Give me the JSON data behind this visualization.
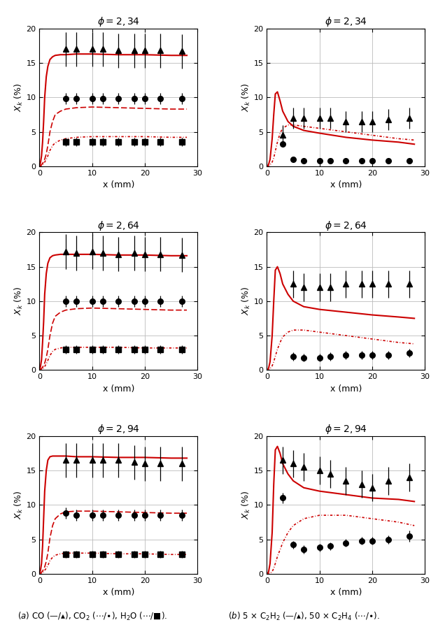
{
  "phi_labels": [
    "2,34",
    "2,64",
    "2,94"
  ],
  "xlim": [
    0,
    30
  ],
  "ylim": [
    0,
    20
  ],
  "xticks": [
    0,
    10,
    20,
    30
  ],
  "yticks": [
    0,
    5,
    10,
    15,
    20
  ],
  "xlabel": "x (mm)",
  "red": "#cc0000",
  "grid_color": "#bbbbbb",
  "left_panels": {
    "CO_line": {
      "phi234": {
        "x": [
          0,
          0.2,
          0.4,
          0.6,
          0.8,
          1.0,
          1.3,
          1.6,
          2.0,
          2.5,
          3.0,
          4.0,
          5.0,
          7.0,
          10,
          15,
          20,
          25,
          28
        ],
        "y": [
          0,
          0.5,
          1.5,
          3.5,
          6.5,
          10,
          13,
          14.5,
          15.5,
          15.9,
          16.1,
          16.2,
          16.2,
          16.3,
          16.3,
          16.2,
          16.2,
          16.1,
          16.1
        ]
      },
      "phi264": {
        "x": [
          0,
          0.2,
          0.4,
          0.6,
          0.8,
          1.0,
          1.3,
          1.6,
          2.0,
          2.5,
          3.0,
          4.0,
          5.0,
          7.0,
          10,
          15,
          20,
          25,
          28
        ],
        "y": [
          0,
          0.5,
          1.5,
          4,
          7,
          11,
          14,
          15.5,
          16.3,
          16.6,
          16.7,
          16.8,
          16.8,
          16.8,
          16.8,
          16.7,
          16.7,
          16.6,
          16.6
        ]
      },
      "phi294": {
        "x": [
          0,
          0.2,
          0.4,
          0.6,
          0.8,
          1.0,
          1.3,
          1.6,
          2.0,
          2.5,
          3.0,
          4.0,
          5.0,
          7.0,
          10,
          15,
          20,
          25,
          28
        ],
        "y": [
          0,
          0.5,
          1.5,
          4,
          8,
          12,
          15,
          16.5,
          17.0,
          17.1,
          17.1,
          17.1,
          17.1,
          17.0,
          17.0,
          16.9,
          16.9,
          16.8,
          16.8
        ]
      }
    },
    "CO2_line": {
      "phi234": {
        "x": [
          0,
          0.2,
          0.4,
          0.6,
          0.8,
          1.0,
          1.3,
          1.6,
          2.0,
          2.5,
          3.0,
          4.0,
          5.0,
          7.0,
          10,
          15,
          20,
          25,
          28
        ],
        "y": [
          0,
          0.1,
          0.2,
          0.4,
          0.7,
          1.0,
          1.8,
          3.0,
          5.0,
          6.5,
          7.5,
          8.0,
          8.3,
          8.5,
          8.6,
          8.5,
          8.4,
          8.3,
          8.3
        ]
      },
      "phi264": {
        "x": [
          0,
          0.2,
          0.4,
          0.6,
          0.8,
          1.0,
          1.3,
          1.6,
          2.0,
          2.5,
          3.0,
          4.0,
          5.0,
          7.0,
          10,
          15,
          20,
          25,
          28
        ],
        "y": [
          0,
          0.1,
          0.2,
          0.4,
          0.7,
          1.0,
          1.8,
          3.0,
          5.0,
          6.8,
          7.8,
          8.4,
          8.7,
          8.9,
          9.0,
          8.9,
          8.8,
          8.7,
          8.7
        ]
      },
      "phi294": {
        "x": [
          0,
          0.2,
          0.4,
          0.6,
          0.8,
          1.0,
          1.3,
          1.6,
          2.0,
          2.5,
          3.0,
          4.0,
          5.0,
          7.0,
          10,
          15,
          20,
          25,
          28
        ],
        "y": [
          0,
          0.1,
          0.2,
          0.4,
          0.7,
          1.0,
          1.8,
          3.0,
          5.2,
          7.0,
          8.0,
          8.7,
          9.0,
          9.1,
          9.1,
          9.0,
          8.9,
          8.8,
          8.8
        ]
      }
    },
    "H2O_line": {
      "phi234": {
        "x": [
          0,
          0.2,
          0.4,
          0.6,
          0.8,
          1.0,
          1.3,
          1.6,
          2.0,
          2.5,
          3.0,
          4.0,
          5.0,
          7.0,
          10,
          15,
          20,
          25,
          28
        ],
        "y": [
          0,
          0.05,
          0.1,
          0.2,
          0.4,
          0.6,
          1.0,
          1.5,
          2.3,
          3.0,
          3.4,
          3.8,
          4.0,
          4.2,
          4.3,
          4.3,
          4.3,
          4.2,
          4.2
        ]
      },
      "phi264": {
        "x": [
          0,
          0.2,
          0.4,
          0.6,
          0.8,
          1.0,
          1.3,
          1.6,
          2.0,
          2.5,
          3.0,
          4.0,
          5.0,
          7.0,
          10,
          15,
          20,
          25,
          28
        ],
        "y": [
          0,
          0.05,
          0.1,
          0.2,
          0.3,
          0.5,
          0.9,
          1.4,
          2.1,
          2.7,
          3.0,
          3.2,
          3.3,
          3.3,
          3.3,
          3.3,
          3.2,
          3.2,
          3.2
        ]
      },
      "phi294": {
        "x": [
          0,
          0.2,
          0.4,
          0.6,
          0.8,
          1.0,
          1.3,
          1.6,
          2.0,
          2.5,
          3.0,
          4.0,
          5.0,
          7.0,
          10,
          15,
          20,
          25,
          28
        ],
        "y": [
          0,
          0.05,
          0.1,
          0.2,
          0.3,
          0.5,
          0.8,
          1.2,
          1.9,
          2.4,
          2.7,
          2.9,
          3.0,
          3.0,
          3.0,
          2.9,
          2.9,
          2.8,
          2.8
        ]
      }
    },
    "CO_exp": {
      "phi234": {
        "x": [
          5,
          7,
          10,
          12,
          15,
          18,
          20,
          23,
          27
        ],
        "y": [
          17.0,
          17.0,
          17.0,
          17.0,
          16.8,
          16.8,
          16.8,
          16.8,
          16.7
        ],
        "yerr": [
          2.5,
          2.5,
          2.5,
          2.5,
          2.5,
          2.5,
          2.5,
          2.5,
          2.5
        ]
      },
      "phi264": {
        "x": [
          5,
          7,
          10,
          12,
          15,
          18,
          20,
          23,
          27
        ],
        "y": [
          17.2,
          17.0,
          17.2,
          17.0,
          16.8,
          17.0,
          16.8,
          16.8,
          16.7
        ],
        "yerr": [
          2.5,
          2.5,
          2.5,
          2.5,
          2.5,
          2.5,
          2.5,
          2.5,
          2.5
        ]
      },
      "phi294": {
        "x": [
          5,
          7,
          10,
          12,
          15,
          18,
          20,
          23,
          27
        ],
        "y": [
          16.5,
          16.5,
          16.5,
          16.5,
          16.5,
          16.2,
          16.0,
          16.0,
          16.0
        ],
        "yerr": [
          2.5,
          2.5,
          2.5,
          2.5,
          2.5,
          2.5,
          2.5,
          2.5,
          2.5
        ]
      }
    },
    "CO2_exp": {
      "phi234": {
        "x": [
          5,
          7,
          10,
          12,
          15,
          18,
          20,
          23,
          27
        ],
        "y": [
          9.8,
          9.8,
          9.8,
          9.8,
          9.8,
          9.8,
          9.8,
          9.8,
          9.8
        ],
        "yerr": [
          0.8,
          0.8,
          0.8,
          0.8,
          0.8,
          0.8,
          0.8,
          0.8,
          0.8
        ]
      },
      "phi264": {
        "x": [
          5,
          7,
          10,
          12,
          15,
          18,
          20,
          23,
          27
        ],
        "y": [
          10.0,
          10.0,
          10.0,
          10.0,
          10.0,
          10.0,
          10.0,
          10.0,
          10.0
        ],
        "yerr": [
          0.8,
          0.8,
          0.8,
          0.8,
          0.8,
          0.8,
          0.8,
          0.8,
          0.8
        ]
      },
      "phi294": {
        "x": [
          5,
          7,
          10,
          12,
          15,
          18,
          20,
          23,
          27
        ],
        "y": [
          8.8,
          8.5,
          8.5,
          8.5,
          8.5,
          8.5,
          8.5,
          8.5,
          8.5
        ],
        "yerr": [
          0.8,
          0.8,
          0.8,
          0.8,
          0.8,
          0.8,
          0.8,
          0.8,
          0.8
        ]
      }
    },
    "H2O_exp": {
      "phi234": {
        "x": [
          5,
          7,
          10,
          12,
          15,
          18,
          20,
          23,
          27
        ],
        "y": [
          3.5,
          3.5,
          3.5,
          3.5,
          3.5,
          3.5,
          3.5,
          3.5,
          3.5
        ],
        "yerr": [
          0.6,
          0.6,
          0.6,
          0.6,
          0.6,
          0.6,
          0.6,
          0.6,
          0.6
        ]
      },
      "phi264": {
        "x": [
          5,
          7,
          10,
          12,
          15,
          18,
          20,
          23,
          27
        ],
        "y": [
          3.0,
          3.0,
          3.0,
          3.0,
          3.0,
          3.0,
          3.0,
          3.0,
          3.0
        ],
        "yerr": [
          0.6,
          0.6,
          0.6,
          0.6,
          0.6,
          0.6,
          0.6,
          0.6,
          0.6
        ]
      },
      "phi294": {
        "x": [
          5,
          7,
          10,
          12,
          15,
          18,
          20,
          23,
          27
        ],
        "y": [
          2.8,
          2.8,
          2.8,
          2.8,
          2.8,
          2.8,
          2.8,
          2.8,
          2.8
        ],
        "yerr": [
          0.5,
          0.5,
          0.5,
          0.5,
          0.5,
          0.5,
          0.5,
          0.5,
          0.5
        ]
      }
    }
  },
  "right_panels": {
    "C2H2_line": {
      "phi234": {
        "x": [
          0,
          0.3,
          0.6,
          1.0,
          1.3,
          1.6,
          2.0,
          2.5,
          3.0,
          4.0,
          5.0,
          7.0,
          10,
          15,
          20,
          25,
          28
        ],
        "y": [
          0,
          0.2,
          1.0,
          4.0,
          7.5,
          10.5,
          10.8,
          9.5,
          8.0,
          6.5,
          5.8,
          5.2,
          4.8,
          4.2,
          3.8,
          3.5,
          3.2
        ]
      },
      "phi264": {
        "x": [
          0,
          0.3,
          0.6,
          1.0,
          1.3,
          1.6,
          2.0,
          2.5,
          3.0,
          4.0,
          5.0,
          7.0,
          10,
          15,
          20,
          25,
          28
        ],
        "y": [
          0,
          0.2,
          1.2,
          5.0,
          10.0,
          14.5,
          15.0,
          14.0,
          12.5,
          11.0,
          10.0,
          9.2,
          8.8,
          8.4,
          8.0,
          7.7,
          7.5
        ]
      },
      "phi294": {
        "x": [
          0,
          0.3,
          0.6,
          1.0,
          1.3,
          1.6,
          2.0,
          2.5,
          3.0,
          4.0,
          5.0,
          7.0,
          10,
          15,
          20,
          25,
          28
        ],
        "y": [
          0,
          0.2,
          1.5,
          6.0,
          13.0,
          18.0,
          18.5,
          17.5,
          16.0,
          14.5,
          13.5,
          12.5,
          12.0,
          11.5,
          11.0,
          10.8,
          10.5
        ]
      }
    },
    "C2H4_line": {
      "phi234": {
        "x": [
          0,
          0.3,
          0.6,
          1.0,
          1.3,
          1.6,
          2.0,
          2.5,
          3.0,
          4.0,
          5.0,
          7.0,
          10,
          15,
          20,
          25,
          28
        ],
        "y": [
          0,
          0.05,
          0.2,
          0.6,
          1.2,
          2.2,
          3.5,
          4.8,
          5.5,
          6.0,
          6.0,
          5.8,
          5.5,
          5.0,
          4.5,
          4.0,
          3.8
        ]
      },
      "phi264": {
        "x": [
          0,
          0.3,
          0.6,
          1.0,
          1.3,
          1.6,
          2.0,
          2.5,
          3.0,
          4.0,
          5.0,
          7.0,
          10,
          15,
          20,
          25,
          28
        ],
        "y": [
          0,
          0.05,
          0.2,
          0.6,
          1.2,
          2.0,
          3.0,
          4.0,
          4.8,
          5.5,
          5.8,
          5.8,
          5.5,
          5.0,
          4.5,
          4.0,
          3.8
        ]
      },
      "phi294": {
        "x": [
          0,
          0.3,
          0.6,
          1.0,
          1.3,
          1.6,
          2.0,
          2.5,
          3.0,
          4.0,
          5.0,
          7.0,
          10,
          15,
          20,
          25,
          28
        ],
        "y": [
          0,
          0.05,
          0.1,
          0.3,
          0.8,
          1.5,
          2.5,
          3.5,
          4.5,
          6.0,
          7.0,
          8.0,
          8.5,
          8.5,
          8.0,
          7.5,
          7.0
        ]
      }
    },
    "C2H2_exp": {
      "phi234": {
        "x": [
          3,
          5,
          7,
          10,
          12,
          15,
          18,
          20,
          23,
          27
        ],
        "y": [
          4.5,
          7.0,
          7.0,
          7.0,
          7.0,
          6.5,
          6.5,
          6.5,
          6.8,
          7.0
        ],
        "yerr": [
          1.5,
          1.5,
          1.5,
          1.5,
          1.5,
          1.5,
          1.5,
          1.5,
          1.5,
          1.5
        ]
      },
      "phi264": {
        "x": [
          5,
          7,
          10,
          12,
          15,
          18,
          20,
          23,
          27
        ],
        "y": [
          12.5,
          12.0,
          12.0,
          12.0,
          12.5,
          12.5,
          12.5,
          12.5,
          12.5
        ],
        "yerr": [
          2.0,
          2.0,
          2.0,
          2.0,
          2.0,
          2.0,
          2.0,
          2.0,
          2.0
        ]
      },
      "phi294": {
        "x": [
          3,
          5,
          7,
          10,
          12,
          15,
          18,
          20,
          23,
          27
        ],
        "y": [
          16.5,
          16.0,
          15.5,
          15.0,
          14.5,
          13.5,
          13.0,
          12.5,
          13.5,
          14.0
        ],
        "yerr": [
          2.0,
          2.0,
          2.0,
          2.0,
          2.0,
          2.0,
          2.0,
          2.0,
          2.0,
          2.0
        ]
      }
    },
    "C2H4_exp": {
      "phi234": {
        "x": [
          3,
          5,
          7,
          10,
          12,
          15,
          18,
          20,
          23,
          27
        ],
        "y": [
          3.2,
          1.0,
          0.8,
          0.8,
          0.8,
          0.8,
          0.8,
          0.8,
          0.8,
          0.8
        ],
        "yerr": [
          0.4,
          0.4,
          0.4,
          0.4,
          0.4,
          0.4,
          0.4,
          0.4,
          0.4,
          0.4
        ]
      },
      "phi264": {
        "x": [
          5,
          7,
          10,
          12,
          15,
          18,
          20,
          23,
          27
        ],
        "y": [
          2.0,
          1.8,
          1.8,
          2.0,
          2.2,
          2.2,
          2.2,
          2.2,
          2.5
        ],
        "yerr": [
          0.6,
          0.6,
          0.6,
          0.6,
          0.6,
          0.6,
          0.6,
          0.6,
          0.6
        ]
      },
      "phi294": {
        "x": [
          3,
          5,
          7,
          10,
          12,
          15,
          18,
          20,
          23,
          27
        ],
        "y": [
          11.0,
          4.2,
          3.5,
          3.8,
          4.0,
          4.5,
          4.8,
          4.8,
          5.0,
          5.5
        ],
        "yerr": [
          0.8,
          0.6,
          0.6,
          0.6,
          0.6,
          0.6,
          0.6,
          0.6,
          0.6,
          0.8
        ]
      }
    }
  }
}
